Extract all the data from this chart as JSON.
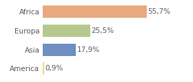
{
  "categories": [
    "Africa",
    "Europa",
    "Asia",
    "America"
  ],
  "values": [
    55.7,
    25.5,
    17.9,
    0.9
  ],
  "labels": [
    "55,7%",
    "25,5%",
    "17,9%",
    "0,9%"
  ],
  "bar_colors": [
    "#e8a97e",
    "#b5c98e",
    "#6e8fbf",
    "#e8d87e"
  ],
  "background_color": "#ffffff",
  "xlim": [
    0,
    68
  ],
  "label_fontsize": 7.5,
  "tick_fontsize": 7.5,
  "bar_height": 0.65
}
